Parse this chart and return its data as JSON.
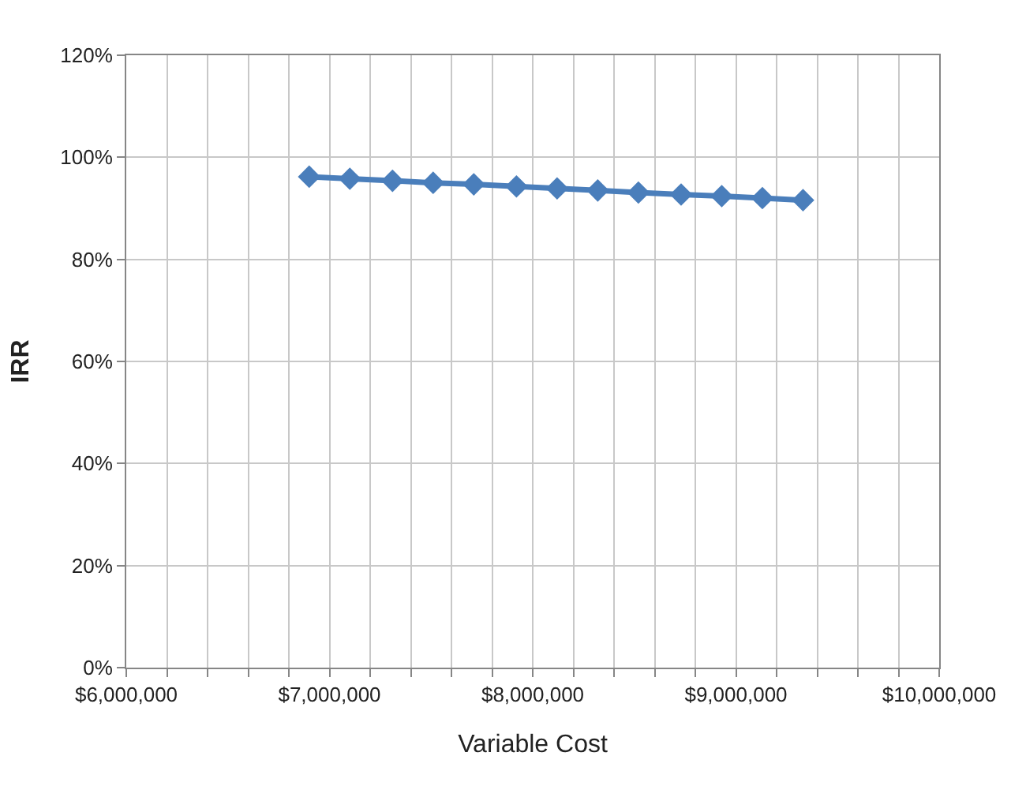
{
  "chart_data": {
    "type": "line",
    "xlabel": "Variable Cost",
    "ylabel": "IRR",
    "x": [
      6900000,
      7100000,
      7310000,
      7510000,
      7710000,
      7920000,
      8120000,
      8320000,
      8520000,
      8730000,
      8930000,
      9130000,
      9330000
    ],
    "series": [
      {
        "color": "#4a7ebb",
        "values": [
          96.2,
          95.8,
          95.4,
          95.0,
          94.7,
          94.3,
          93.9,
          93.5,
          93.1,
          92.7,
          92.4,
          92.0,
          91.6
        ]
      }
    ],
    "xlim": [
      6000000,
      10000000
    ],
    "xticks": [
      {
        "value": 6000000,
        "label": "$6,000,000"
      },
      {
        "value": 6200000,
        "label": null
      },
      {
        "value": 6400000,
        "label": null
      },
      {
        "value": 6600000,
        "label": null
      },
      {
        "value": 6800000,
        "label": null
      },
      {
        "value": 7000000,
        "label": "$7,000,000"
      },
      {
        "value": 7200000,
        "label": null
      },
      {
        "value": 7400000,
        "label": null
      },
      {
        "value": 7600000,
        "label": null
      },
      {
        "value": 7800000,
        "label": null
      },
      {
        "value": 8000000,
        "label": "$8,000,000"
      },
      {
        "value": 8200000,
        "label": null
      },
      {
        "value": 8400000,
        "label": null
      },
      {
        "value": 8600000,
        "label": null
      },
      {
        "value": 8800000,
        "label": null
      },
      {
        "value": 9000000,
        "label": "$9,000,000"
      },
      {
        "value": 9200000,
        "label": null
      },
      {
        "value": 9400000,
        "label": null
      },
      {
        "value": 9600000,
        "label": null
      },
      {
        "value": 9800000,
        "label": null
      },
      {
        "value": 10000000,
        "label": "$10,000,000"
      }
    ],
    "ylim": [
      0,
      120
    ],
    "yticks": [
      {
        "value": 0,
        "label": "0%"
      },
      {
        "value": 20,
        "label": "20%"
      },
      {
        "value": 40,
        "label": "40%"
      },
      {
        "value": 60,
        "label": "60%"
      },
      {
        "value": 80,
        "label": "80%"
      },
      {
        "value": 100,
        "label": "100%"
      },
      {
        "value": 120,
        "label": "120%"
      }
    ],
    "grid": true,
    "marker": "diamond",
    "line_style": "solid"
  }
}
